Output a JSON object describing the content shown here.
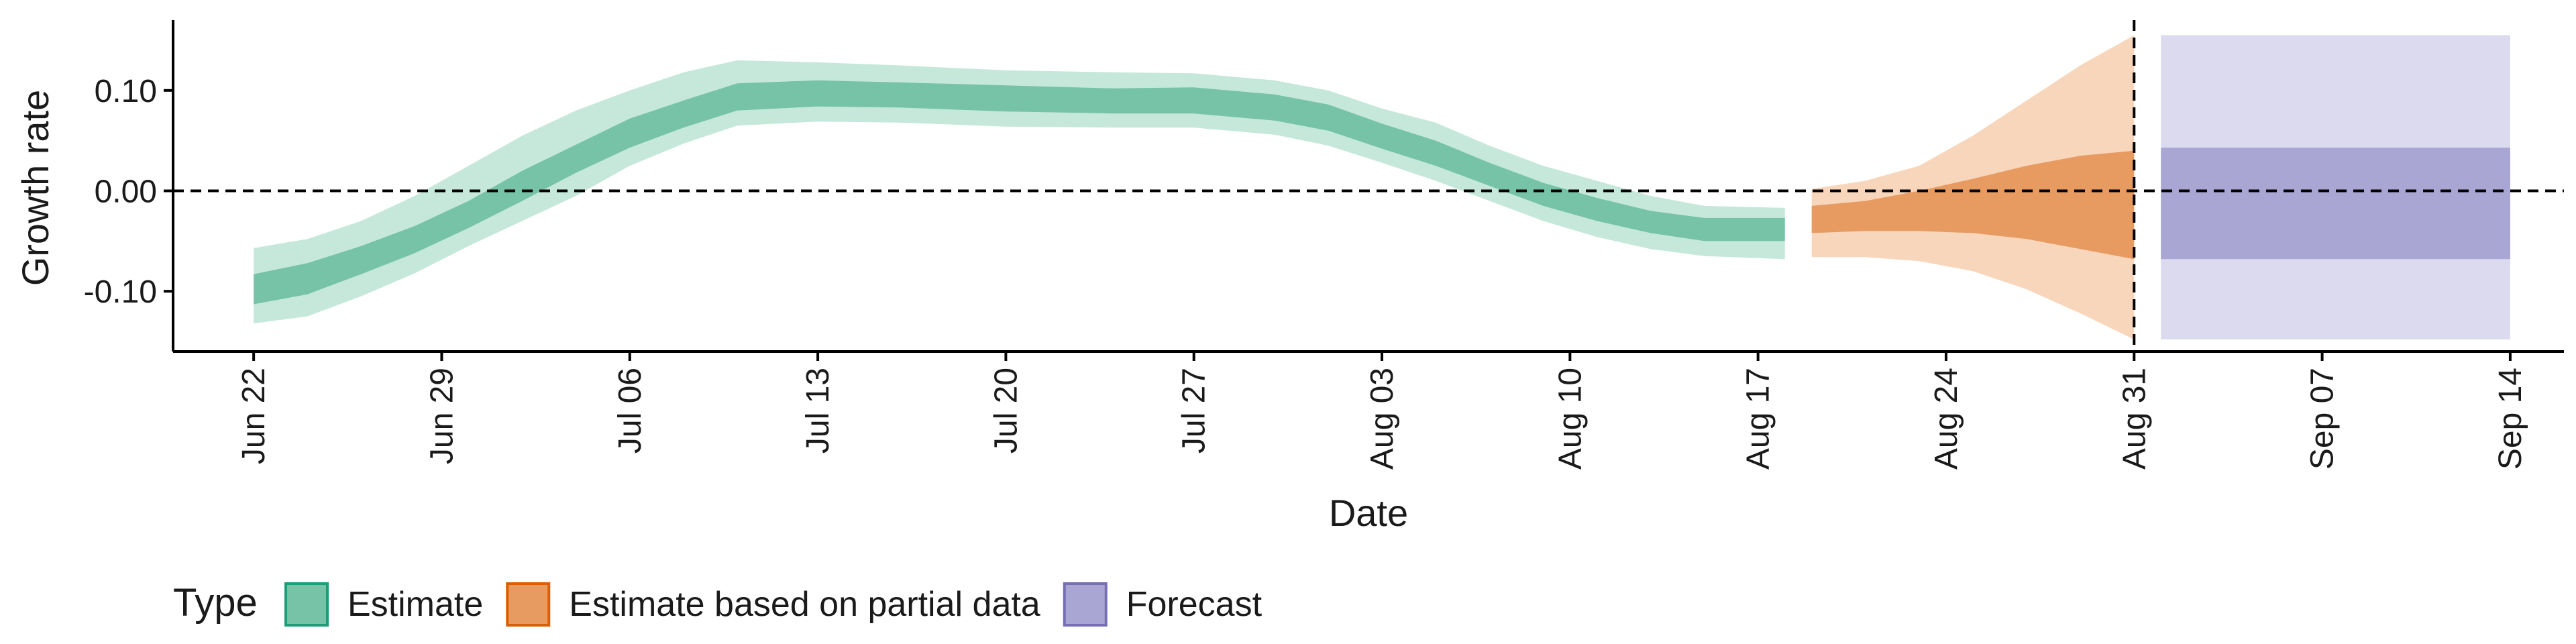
{
  "chart_data": {
    "type": "area",
    "xlabel": "Date",
    "ylabel": "Growth rate",
    "xlim": [
      "2020-06-19",
      "2020-09-16"
    ],
    "ylim": [
      -0.16,
      0.17
    ],
    "x_ticks": [
      "2020-06-22",
      "2020-06-29",
      "2020-07-06",
      "2020-07-13",
      "2020-07-20",
      "2020-07-27",
      "2020-08-03",
      "2020-08-10",
      "2020-08-17",
      "2020-08-24",
      "2020-08-31",
      "2020-09-07",
      "2020-09-14"
    ],
    "x_tick_labels": [
      "Jun 22",
      "Jun 29",
      "Jul 06",
      "Jul 13",
      "Jul 20",
      "Jul 27",
      "Aug 03",
      "Aug 10",
      "Aug 17",
      "Aug 24",
      "Aug 31",
      "Sep 07",
      "Sep 14"
    ],
    "y_ticks": [
      -0.1,
      0.0,
      0.1
    ],
    "y_tick_labels": [
      "-0.10",
      "0.00",
      "0.10"
    ],
    "reference_lines": {
      "horizontal_y": 0.0,
      "vertical_x": "2020-08-31"
    },
    "legend": {
      "title": "Type",
      "position": "bottom"
    },
    "colors": {
      "Estimate": {
        "inner": "#76c3a8",
        "outer": "#c6e8db",
        "border": "#1b9e77"
      },
      "Estimate based on partial data": {
        "inner": "#e89b61",
        "outer": "#f8d6bc",
        "border": "#d95f02"
      },
      "Forecast": {
        "inner": "#a9a6d4",
        "outer": "#dbdaee",
        "border": "#7570b3"
      }
    },
    "series": [
      {
        "name": "Estimate",
        "x": [
          "2020-06-22",
          "2020-06-24",
          "2020-06-26",
          "2020-06-28",
          "2020-06-30",
          "2020-07-02",
          "2020-07-04",
          "2020-07-06",
          "2020-07-08",
          "2020-07-10",
          "2020-07-13",
          "2020-07-16",
          "2020-07-20",
          "2020-07-24",
          "2020-07-27",
          "2020-07-30",
          "2020-08-01",
          "2020-08-03",
          "2020-08-05",
          "2020-08-07",
          "2020-08-09",
          "2020-08-11",
          "2020-08-13",
          "2020-08-15",
          "2020-08-18"
        ],
        "inner_upper": [
          -0.083,
          -0.072,
          -0.055,
          -0.035,
          -0.01,
          0.02,
          0.046,
          0.072,
          0.09,
          0.107,
          0.11,
          0.108,
          0.105,
          0.102,
          0.103,
          0.096,
          0.086,
          0.067,
          0.05,
          0.028,
          0.008,
          -0.007,
          -0.02,
          -0.027,
          -0.027
        ],
        "inner_lower": [
          -0.113,
          -0.103,
          -0.083,
          -0.062,
          -0.037,
          -0.01,
          0.018,
          0.043,
          0.063,
          0.08,
          0.084,
          0.083,
          0.079,
          0.077,
          0.077,
          0.07,
          0.06,
          0.042,
          0.025,
          0.005,
          -0.015,
          -0.03,
          -0.042,
          -0.05,
          -0.05
        ],
        "outer_upper": [
          -0.057,
          -0.048,
          -0.03,
          -0.005,
          0.025,
          0.055,
          0.08,
          0.1,
          0.118,
          0.13,
          0.128,
          0.125,
          0.12,
          0.118,
          0.117,
          0.11,
          0.1,
          0.082,
          0.068,
          0.045,
          0.025,
          0.01,
          -0.005,
          -0.015,
          -0.017
        ],
        "outer_lower": [
          -0.132,
          -0.125,
          -0.105,
          -0.082,
          -0.055,
          -0.03,
          -0.005,
          0.025,
          0.047,
          0.065,
          0.069,
          0.068,
          0.064,
          0.063,
          0.063,
          0.056,
          0.045,
          0.028,
          0.01,
          -0.01,
          -0.03,
          -0.046,
          -0.058,
          -0.065,
          -0.068
        ]
      },
      {
        "name": "Estimate based on partial data",
        "x": [
          "2020-08-19",
          "2020-08-21",
          "2020-08-23",
          "2020-08-25",
          "2020-08-27",
          "2020-08-29",
          "2020-08-31"
        ],
        "inner_upper": [
          -0.015,
          -0.01,
          0.0,
          0.012,
          0.025,
          0.035,
          0.04
        ],
        "inner_lower": [
          -0.042,
          -0.04,
          -0.04,
          -0.042,
          -0.048,
          -0.058,
          -0.068
        ],
        "outer_upper": [
          0.002,
          0.01,
          0.025,
          0.055,
          0.09,
          0.125,
          0.155
        ],
        "outer_lower": [
          -0.066,
          -0.066,
          -0.07,
          -0.08,
          -0.098,
          -0.122,
          -0.148
        ]
      },
      {
        "name": "Forecast",
        "x": [
          "2020-09-01",
          "2020-09-14"
        ],
        "inner_upper": [
          0.043,
          0.043
        ],
        "inner_lower": [
          -0.068,
          -0.068
        ],
        "outer_upper": [
          0.155,
          0.155
        ],
        "outer_lower": [
          -0.148,
          -0.148
        ]
      }
    ]
  }
}
